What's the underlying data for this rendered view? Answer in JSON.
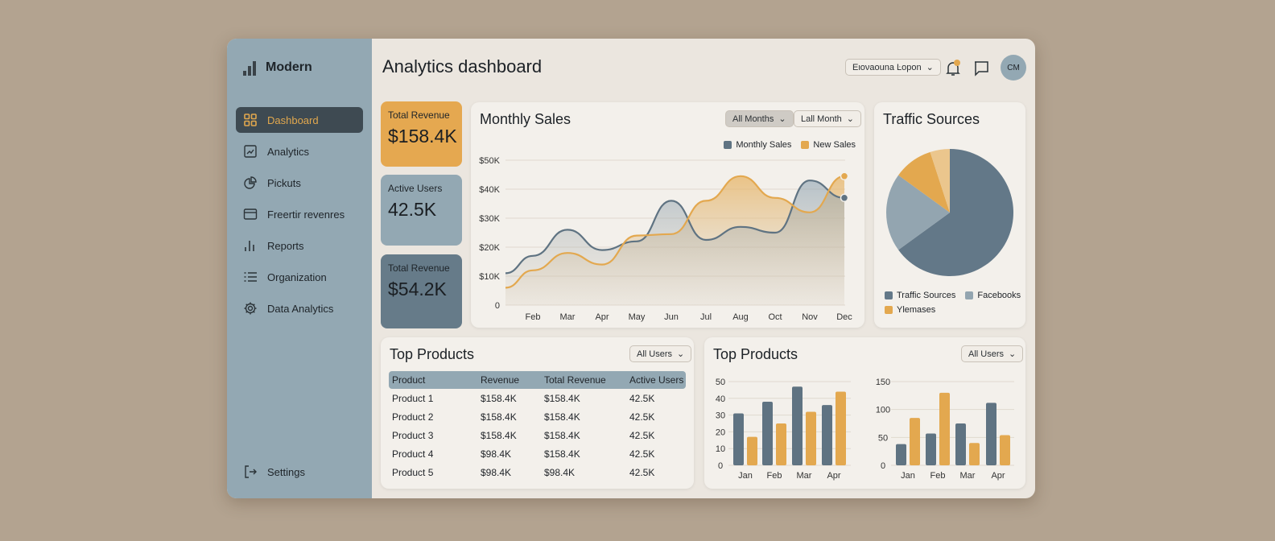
{
  "sidebar": {
    "brand": "Modern",
    "items": [
      {
        "label": "Dashboard",
        "icon": "grid-icon"
      },
      {
        "label": "Analytics",
        "icon": "chart-icon"
      },
      {
        "label": "Pickuts",
        "icon": "pie-icon"
      },
      {
        "label": "Freertir revenres",
        "icon": "card-icon"
      },
      {
        "label": "Reports",
        "icon": "bars-icon"
      },
      {
        "label": "Organization",
        "icon": "list-icon"
      },
      {
        "label": "Data Analytics",
        "icon": "gear-icon"
      }
    ],
    "settings": "Settings"
  },
  "header": {
    "title": "Analytics dashboard",
    "dropdown": "Eιονaοuna Ŀopon",
    "avatar": "CM"
  },
  "stats": [
    {
      "label": "Total Revenue",
      "value": "$158.4K",
      "color": "#e5a850"
    },
    {
      "label": "Active Users",
      "value": "42.5K",
      "color": "#93a8b3"
    },
    {
      "label": "Total Revenue",
      "value": "$54.2K",
      "color": "#667b89"
    }
  ],
  "monthly": {
    "title": "Monthly Sales",
    "filter1": "All Months",
    "filter2": "Lall Month"
  },
  "traffic": {
    "title": "Traffic Sources"
  },
  "products": {
    "title": "Top Products",
    "filter": "All Users",
    "columns": [
      "Product",
      "Revenue",
      "Total Revenue",
      "Active Users"
    ],
    "rows": [
      [
        "Product 1",
        "$158.4K",
        "$158.4K",
        "42.5K"
      ],
      [
        "Product 2",
        "$158.4K",
        "$158.4K",
        "42.5K"
      ],
      [
        "Product 3",
        "$158.4K",
        "$158.4K",
        "42.5K"
      ],
      [
        "Product 4",
        "$98.4K",
        "$158.4K",
        "42.5K"
      ],
      [
        "Product 5",
        "$98.4K",
        "$98.4K",
        "42.5K"
      ]
    ]
  },
  "bars": {
    "title": "Top Products",
    "filter": "All Users"
  },
  "chart_data": [
    {
      "type": "area",
      "categories": [
        "",
        "Feb",
        "Mar",
        "Apr",
        "May",
        "Jun",
        "Jul",
        "Aug",
        "Oct",
        "Nov",
        "Dec"
      ],
      "yticks": [
        "0",
        "$10K",
        "$20K",
        "$30K",
        "$40K",
        "$50K"
      ],
      "ylim": [
        0,
        50000
      ],
      "grid": true,
      "legend": "top-right",
      "series": [
        {
          "name": "Monthly Sales",
          "color": "#5f7382",
          "values": [
            11000,
            17000,
            26000,
            19000,
            22000,
            36000,
            22500,
            27000,
            25000,
            43000,
            37000
          ]
        },
        {
          "name": "New Sales",
          "color": "#e3a84f",
          "values": [
            6000,
            12000,
            18000,
            14000,
            24000,
            24500,
            36000,
            44500,
            37000,
            32000,
            44500
          ]
        }
      ]
    },
    {
      "type": "pie",
      "legend": "bottom",
      "slices": [
        {
          "name": "Traffic Sources",
          "value": 65,
          "color": "#637888"
        },
        {
          "name": "Facebooks",
          "value": 20,
          "color": "#93a5b0"
        },
        {
          "name": "Ylemases",
          "value": 10,
          "color": "#e3a84f"
        },
        {
          "name": "",
          "value": 5,
          "color": "#ebc68d"
        }
      ]
    },
    {
      "type": "bar",
      "categories": [
        "Jan",
        "Feb",
        "Mar",
        "Apr"
      ],
      "ylim": [
        0,
        50
      ],
      "yticks": [
        "0",
        "10",
        "20",
        "30",
        "40",
        "50"
      ],
      "series": [
        {
          "color": "#5f7382",
          "values": [
            31,
            38,
            47,
            36
          ]
        },
        {
          "color": "#e3a84f",
          "values": [
            17,
            25,
            32,
            44
          ]
        }
      ]
    },
    {
      "type": "bar",
      "categories": [
        "Jan",
        "Feb",
        "Mar",
        "Apr"
      ],
      "ylim": [
        0,
        150
      ],
      "yticks": [
        "0",
        "50",
        "100",
        "150"
      ],
      "series": [
        {
          "color": "#5f7382",
          "values": [
            38,
            57,
            75,
            112
          ]
        },
        {
          "color": "#e3a84f",
          "values": [
            85,
            130,
            40,
            54
          ]
        }
      ]
    }
  ]
}
